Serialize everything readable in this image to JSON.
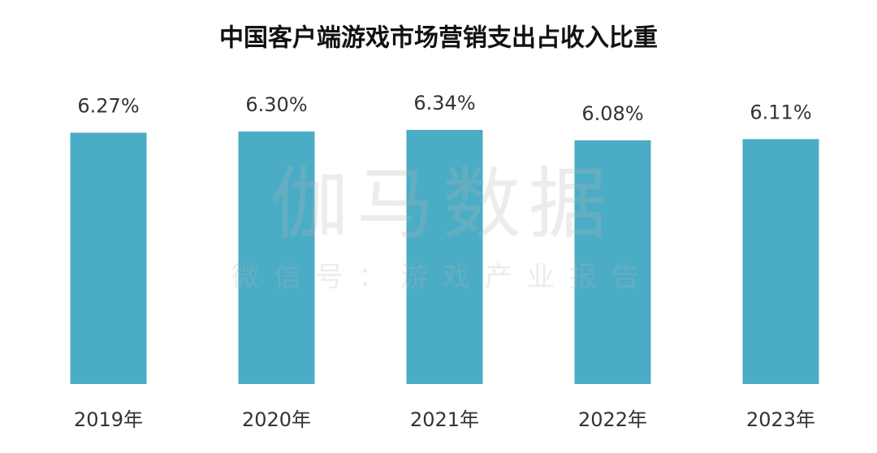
{
  "chart_data": {
    "type": "bar",
    "title": "中国客户端游戏市场营销支出占收入比重",
    "categories": [
      "2019年",
      "2020年",
      "2021年",
      "2022年",
      "2023年"
    ],
    "values": [
      6.27,
      6.3,
      6.34,
      6.08,
      6.11
    ],
    "value_labels": [
      "6.27%",
      "6.30%",
      "6.34%",
      "6.08%",
      "6.11%"
    ],
    "color": "#4bacc6",
    "watermark": "伽马数据",
    "watermark_subtitle": "微信号：游戏产业报告"
  }
}
